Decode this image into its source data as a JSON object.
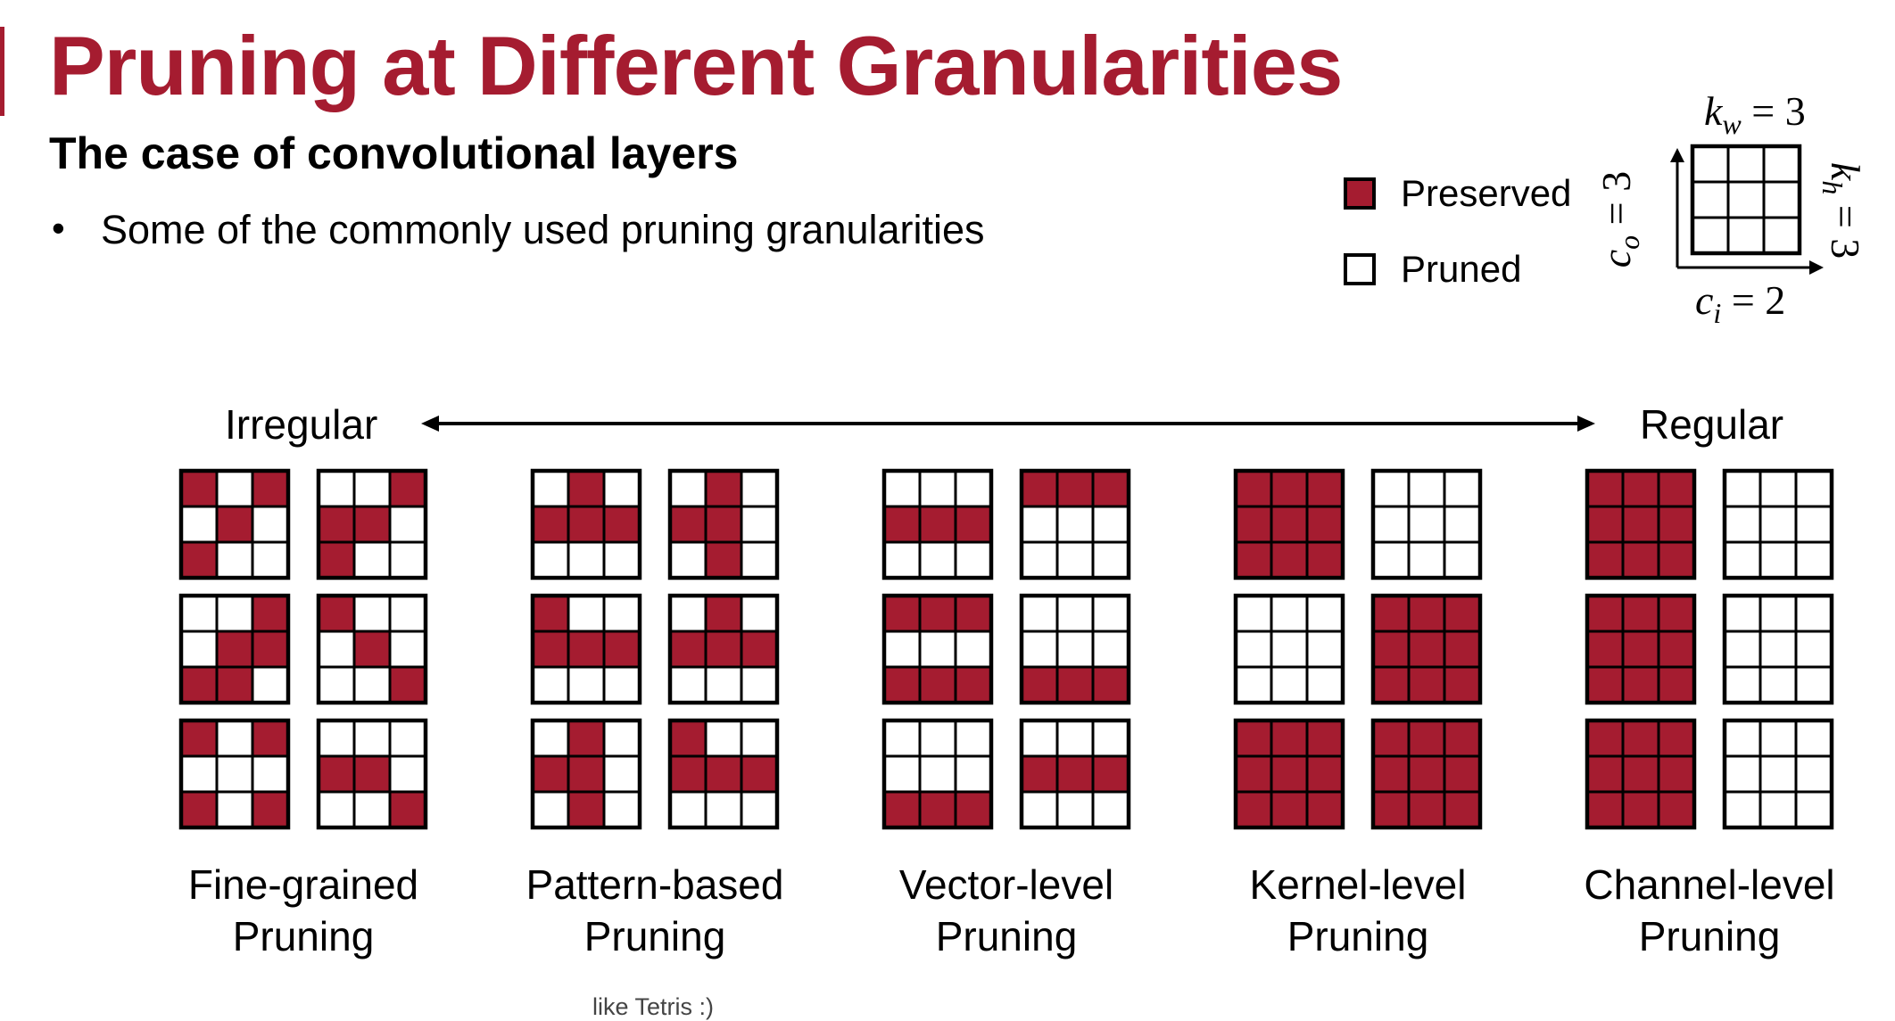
{
  "title": "Pruning at Different Granularities",
  "subtitle": "The case of convolutional layers",
  "bullet": "Some of the commonly used pruning granularities",
  "legend": {
    "preserved": "Preserved",
    "pruned": "Pruned"
  },
  "kernel_dims": {
    "kw": "k",
    "kw_sub": "w",
    "kw_val": "= 3",
    "kh": "k",
    "kh_sub": "h",
    "kh_val": "= 3",
    "co": "c",
    "co_sub": "o",
    "co_val": "= 3",
    "ci": "c",
    "ci_sub": "i",
    "ci_val": "= 2"
  },
  "axis": {
    "left": "Irregular",
    "right": "Regular"
  },
  "colors": {
    "preserved": "#a51c30",
    "pruned": "#ffffff",
    "accent": "#a51c30"
  },
  "groups": [
    {
      "line1": "Fine-grained",
      "line2": "Pruning",
      "kernels": [
        [
          "101",
          "010",
          "100"
        ],
        [
          "001",
          "110",
          "100"
        ],
        [
          "001",
          "011",
          "110"
        ],
        [
          "100",
          "010",
          "001"
        ],
        [
          "101",
          "000",
          "101"
        ],
        [
          "000",
          "110",
          "001"
        ]
      ]
    },
    {
      "line1": "Pattern-based",
      "line2": "Pruning",
      "kernels": [
        [
          "010",
          "111",
          "000"
        ],
        [
          "010",
          "110",
          "010"
        ],
        [
          "100",
          "111",
          "000"
        ],
        [
          "010",
          "111",
          "000"
        ],
        [
          "010",
          "110",
          "010"
        ],
        [
          "100",
          "111",
          "000"
        ]
      ]
    },
    {
      "line1": "Vector-level",
      "line2": "Pruning",
      "kernels": [
        [
          "000",
          "111",
          "000"
        ],
        [
          "111",
          "000",
          "000"
        ],
        [
          "111",
          "000",
          "111"
        ],
        [
          "000",
          "000",
          "111"
        ],
        [
          "000",
          "000",
          "111"
        ],
        [
          "000",
          "111",
          "000"
        ]
      ]
    },
    {
      "line1": "Kernel-level",
      "line2": "Pruning",
      "kernels": [
        [
          "111",
          "111",
          "111"
        ],
        [
          "000",
          "000",
          "000"
        ],
        [
          "000",
          "000",
          "000"
        ],
        [
          "111",
          "111",
          "111"
        ],
        [
          "111",
          "111",
          "111"
        ],
        [
          "111",
          "111",
          "111"
        ]
      ]
    },
    {
      "line1": "Channel-level",
      "line2": "Pruning",
      "kernels": [
        [
          "111",
          "111",
          "111"
        ],
        [
          "000",
          "000",
          "000"
        ],
        [
          "111",
          "111",
          "111"
        ],
        [
          "000",
          "000",
          "000"
        ],
        [
          "111",
          "111",
          "111"
        ],
        [
          "000",
          "000",
          "000"
        ]
      ]
    }
  ],
  "note": "like Tetris :)"
}
